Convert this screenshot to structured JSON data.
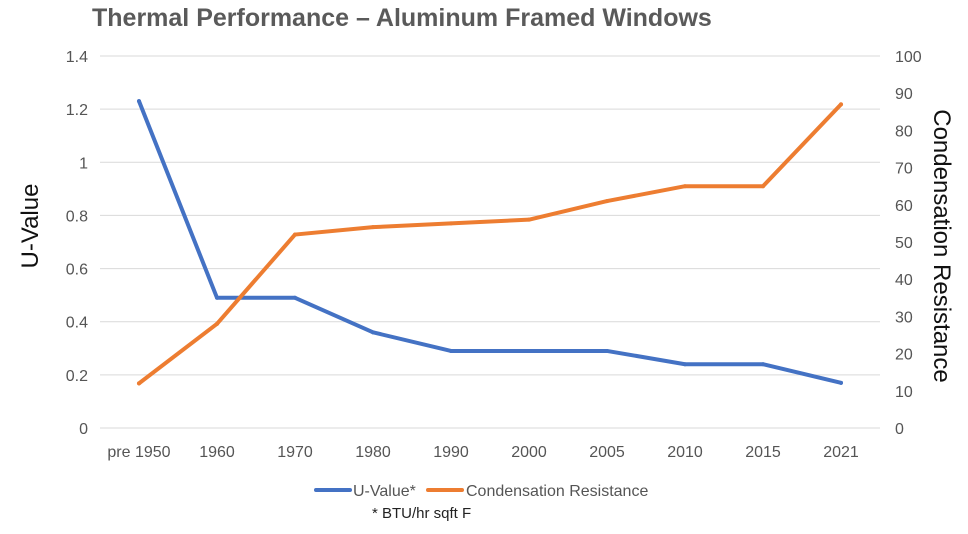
{
  "chart_data": {
    "type": "line",
    "title": "Thermal Performance – Aluminum Framed Windows",
    "categories": [
      "pre 1950",
      "1960",
      "1970",
      "1980",
      "1990",
      "2000",
      "2005",
      "2010",
      "2015",
      "2021"
    ],
    "ylabel": "U-Value",
    "y2label": "Condensation Resistance",
    "ylim": [
      0,
      1.4
    ],
    "y2lim": [
      0,
      100
    ],
    "yticks": [
      "0",
      "0.2",
      "0.4",
      "0.6",
      "0.8",
      "1",
      "1.2",
      "1.4"
    ],
    "y2ticks": [
      "0",
      "10",
      "20",
      "30",
      "40",
      "50",
      "60",
      "70",
      "80",
      "90",
      "100"
    ],
    "grid": true,
    "legend_position": "bottom",
    "series": [
      {
        "name": "U-Value*",
        "axis": "left",
        "color": "#4472c4",
        "values": [
          1.23,
          0.49,
          0.49,
          0.36,
          0.29,
          0.29,
          0.29,
          0.24,
          0.24,
          0.17
        ]
      },
      {
        "name": "Condensation Resistance",
        "axis": "right",
        "color": "#ed7d31",
        "values": [
          12,
          28,
          52,
          54,
          55,
          56,
          61,
          65,
          65,
          87
        ]
      }
    ],
    "footnote": "* BTU/hr sqft F"
  }
}
